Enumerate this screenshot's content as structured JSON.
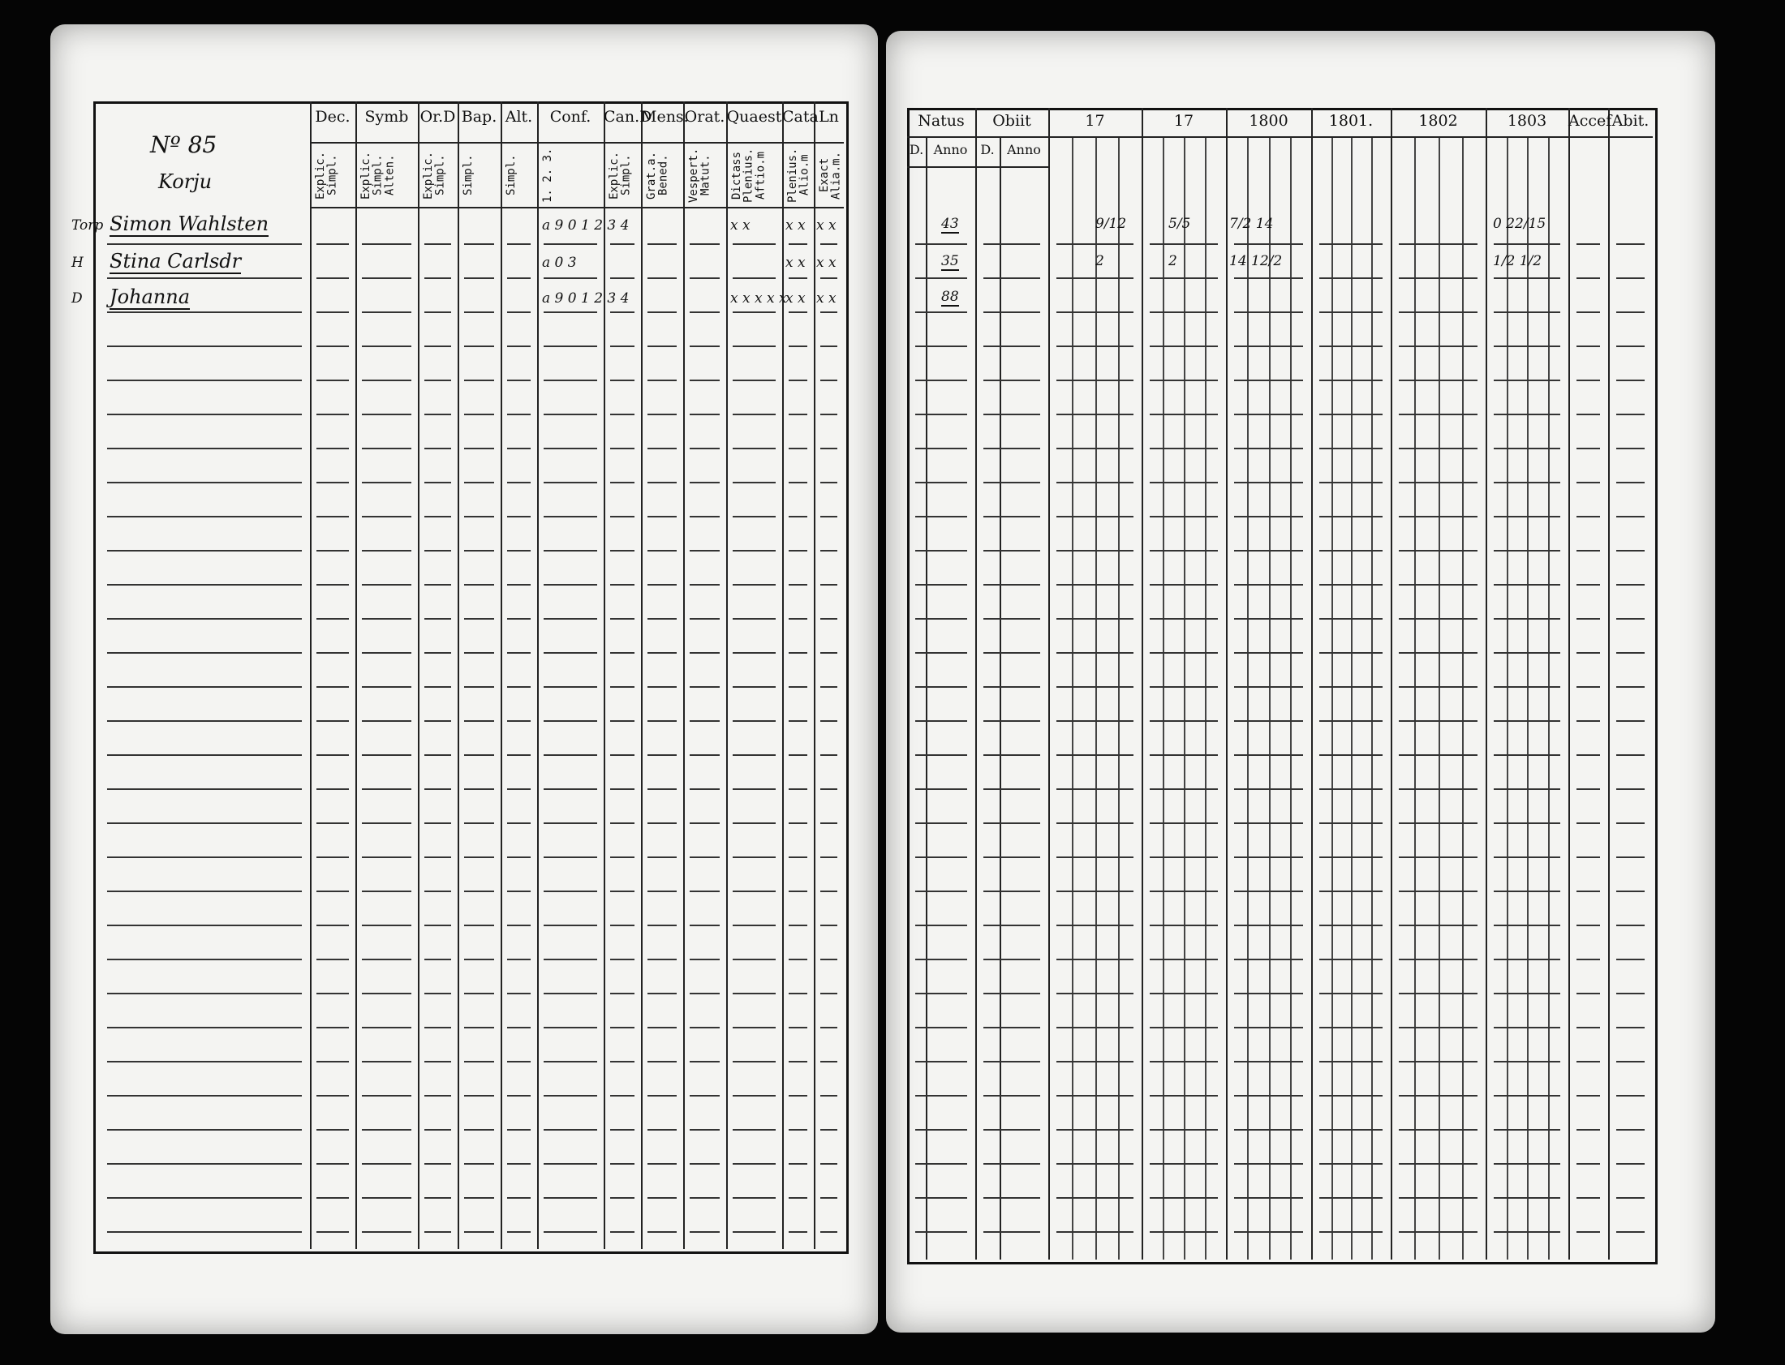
{
  "left_page": {
    "household_no": "Nº 85",
    "place": "Korju",
    "columns": [
      {
        "header": "Dec.",
        "sub": "Explic. Simpl."
      },
      {
        "header": "Symb",
        "sub": "Explic. Simpl. Alten."
      },
      {
        "header": "Or.D",
        "sub": "Explic. Simpl."
      },
      {
        "header": "Bap.",
        "sub": "Simpl."
      },
      {
        "header": "Alt.",
        "sub": "Simpl."
      },
      {
        "header": "Conf.",
        "sub": "1. 2. 3."
      },
      {
        "header": "Can.D",
        "sub": "Explic. Simpl."
      },
      {
        "header": "Mens.",
        "sub": "Grat.a. Bened."
      },
      {
        "header": "Orat.",
        "sub": "Vespert. Matut."
      },
      {
        "header": "Quaest",
        "sub": "Dictass Plenius. Aftio.m"
      },
      {
        "header": "Cata",
        "sub": "Plenius. Alio.m"
      },
      {
        "header": "Ln",
        "sub": "Exact Alia.m."
      }
    ],
    "persons": [
      {
        "prefix": "Torp",
        "name": "Simon Wahlsten",
        "conf": "a 9 0 1 2 3 4",
        "quaest": "x x",
        "cata": "x x",
        "ln": "x x"
      },
      {
        "prefix": "H",
        "name": "Stina Carlsdr",
        "conf": "a 0 3",
        "quaest": "",
        "cata": "x x",
        "ln": "x x"
      },
      {
        "prefix": "D",
        "name": "Johanna",
        "conf": "a 9 0 1 2 3 4",
        "quaest": "x x x x x",
        "cata": "x x",
        "ln": "x x"
      }
    ]
  },
  "right_page": {
    "headers": [
      "Natus",
      "Obiit",
      "17",
      "17",
      "1800",
      "1801.",
      "1802",
      "1803",
      "Accef",
      "Abit."
    ],
    "subheaders": [
      "D.",
      "Anno",
      "D.",
      "Anno"
    ],
    "rows": [
      {
        "natus_anno": "43",
        "c17a": "9/12",
        "c17b": "5/5",
        "c1800": "7/2  14",
        "c1803": "0  22/15"
      },
      {
        "natus_anno": "35",
        "c17a": "2",
        "c17b": "2",
        "c1800": "14  12/2",
        "c1803": "1/2  1/2"
      },
      {
        "natus_anno": "88",
        "c17a": "",
        "c17b": "",
        "c1800": "",
        "c1803": ""
      }
    ]
  },
  "colors": {
    "paper": "#f4f4f2",
    "ink": "#111111",
    "background": "#050505"
  }
}
